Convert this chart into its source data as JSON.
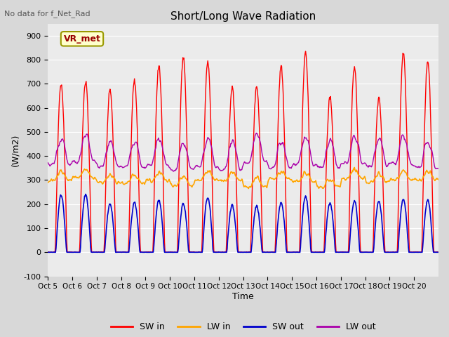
{
  "title": "Short/Long Wave Radiation",
  "subtitle": "No data for f_Net_Rad",
  "ylabel": "(W/m2)",
  "xlabel": "Time",
  "ylim": [
    -100,
    950
  ],
  "yticks": [
    -100,
    0,
    100,
    200,
    300,
    400,
    500,
    600,
    700,
    800,
    900
  ],
  "x_tick_labels": [
    "Oct 5",
    "Oct 6",
    "Oct 7",
    "Oct 8",
    "Oct 9",
    "Oct 10",
    "Oct 11",
    "Oct 12",
    "Oct 13",
    "Oct 14",
    "Oct 15",
    "Oct 16",
    "Oct 17",
    "Oct 18",
    "Oct 19",
    "Oct 20"
  ],
  "legend_label": "VR_met",
  "bg_color": "#d8d8d8",
  "plot_bg_color": "#ebebeb",
  "sw_in_color": "#ff0000",
  "lw_in_color": "#ffa500",
  "sw_out_color": "#0000cc",
  "lw_out_color": "#aa00aa",
  "n_days": 16,
  "points_per_day": 48
}
